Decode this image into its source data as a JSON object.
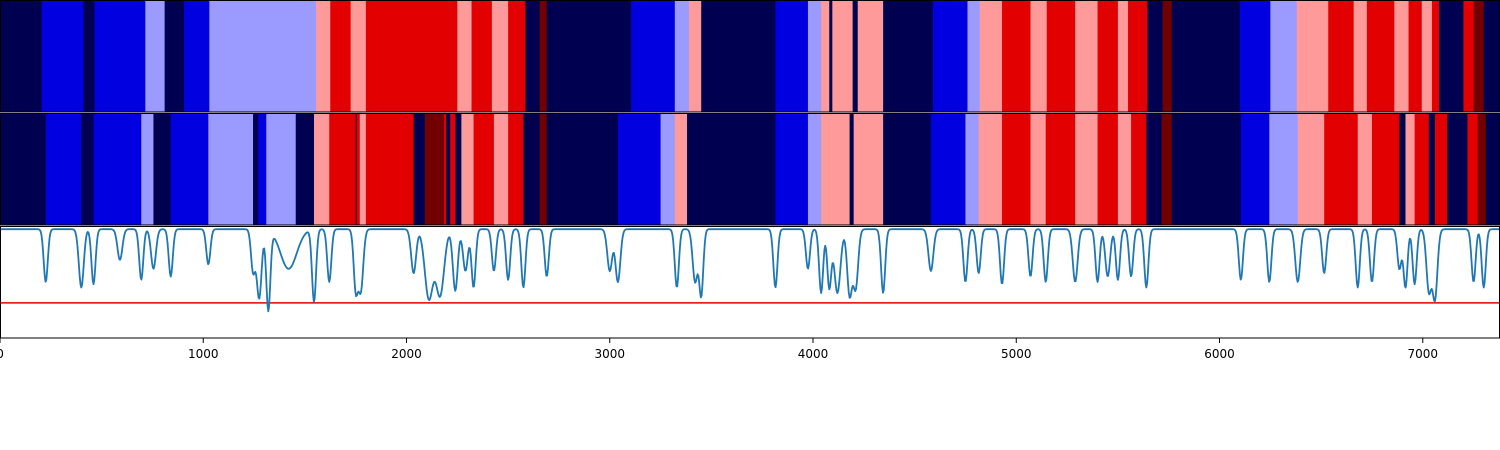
{
  "chart_data": [
    {
      "type": "heatmap",
      "panel": "top-state-track",
      "palette": {
        "navy": "#000050",
        "blue": "#0000e0",
        "lightblue": "#9a9aff",
        "pink": "#ff9a9a",
        "red": "#e20000",
        "darkred": "#720000"
      },
      "segments": [
        [
          0,
          205,
          "navy"
        ],
        [
          205,
          410,
          "blue"
        ],
        [
          410,
          465,
          "navy"
        ],
        [
          465,
          715,
          "blue"
        ],
        [
          715,
          810,
          "lightblue"
        ],
        [
          810,
          905,
          "navy"
        ],
        [
          905,
          1030,
          "blue"
        ],
        [
          1030,
          1555,
          "lightblue"
        ],
        [
          1555,
          1625,
          "pink"
        ],
        [
          1625,
          1725,
          "red"
        ],
        [
          1725,
          1800,
          "pink"
        ],
        [
          1800,
          2250,
          "red"
        ],
        [
          2250,
          2320,
          "pink"
        ],
        [
          2320,
          2420,
          "red"
        ],
        [
          2420,
          2500,
          "pink"
        ],
        [
          2500,
          2585,
          "red"
        ],
        [
          2585,
          2655,
          "navy"
        ],
        [
          2655,
          2690,
          "darkred"
        ],
        [
          2690,
          3105,
          "navy"
        ],
        [
          3105,
          3320,
          "blue"
        ],
        [
          3320,
          3390,
          "lightblue"
        ],
        [
          3390,
          3450,
          "pink"
        ],
        [
          3450,
          3815,
          "navy"
        ],
        [
          3815,
          3975,
          "blue"
        ],
        [
          3975,
          4040,
          "lightblue"
        ],
        [
          4040,
          4080,
          "pink"
        ],
        [
          4080,
          4095,
          "navy"
        ],
        [
          4095,
          4195,
          "pink"
        ],
        [
          4195,
          4220,
          "navy"
        ],
        [
          4220,
          4345,
          "pink"
        ],
        [
          4345,
          4590,
          "navy"
        ],
        [
          4590,
          4760,
          "blue"
        ],
        [
          4760,
          4820,
          "lightblue"
        ],
        [
          4820,
          4930,
          "pink"
        ],
        [
          4930,
          5070,
          "red"
        ],
        [
          5070,
          5150,
          "pink"
        ],
        [
          5150,
          5290,
          "red"
        ],
        [
          5290,
          5400,
          "pink"
        ],
        [
          5400,
          5500,
          "red"
        ],
        [
          5500,
          5550,
          "pink"
        ],
        [
          5550,
          5645,
          "red"
        ],
        [
          5645,
          5720,
          "navy"
        ],
        [
          5720,
          5765,
          "darkred"
        ],
        [
          5765,
          6100,
          "navy"
        ],
        [
          6100,
          6250,
          "blue"
        ],
        [
          6250,
          6380,
          "lightblue"
        ],
        [
          6380,
          6535,
          "pink"
        ],
        [
          6535,
          6660,
          "red"
        ],
        [
          6660,
          6725,
          "pink"
        ],
        [
          6725,
          6860,
          "red"
        ],
        [
          6860,
          6930,
          "pink"
        ],
        [
          6930,
          6995,
          "red"
        ],
        [
          6995,
          7045,
          "pink"
        ],
        [
          7045,
          7080,
          "red"
        ],
        [
          7080,
          7200,
          "navy"
        ],
        [
          7200,
          7250,
          "red"
        ],
        [
          7250,
          7300,
          "darkred"
        ],
        [
          7300,
          7380,
          "navy"
        ]
      ]
    },
    {
      "type": "heatmap",
      "panel": "middle-state-track",
      "segments": [
        [
          0,
          225,
          "navy"
        ],
        [
          225,
          400,
          "blue"
        ],
        [
          400,
          460,
          "navy"
        ],
        [
          460,
          695,
          "blue"
        ],
        [
          695,
          755,
          "lightblue"
        ],
        [
          755,
          840,
          "navy"
        ],
        [
          840,
          1025,
          "blue"
        ],
        [
          1025,
          1245,
          "lightblue"
        ],
        [
          1245,
          1270,
          "navy"
        ],
        [
          1270,
          1310,
          "blue"
        ],
        [
          1310,
          1455,
          "lightblue"
        ],
        [
          1455,
          1545,
          "navy"
        ],
        [
          1545,
          1620,
          "pink"
        ],
        [
          1620,
          1750,
          "red"
        ],
        [
          1750,
          1755,
          "navy"
        ],
        [
          1755,
          1770,
          "red"
        ],
        [
          1770,
          1800,
          "pink"
        ],
        [
          1800,
          2035,
          "red"
        ],
        [
          2035,
          2090,
          "navy"
        ],
        [
          2090,
          2185,
          "darkred"
        ],
        [
          2185,
          2195,
          "red"
        ],
        [
          2195,
          2215,
          "navy"
        ],
        [
          2215,
          2240,
          "red"
        ],
        [
          2240,
          2270,
          "navy"
        ],
        [
          2270,
          2330,
          "pink"
        ],
        [
          2330,
          2430,
          "red"
        ],
        [
          2430,
          2500,
          "pink"
        ],
        [
          2500,
          2575,
          "red"
        ],
        [
          2575,
          2655,
          "navy"
        ],
        [
          2655,
          2690,
          "darkred"
        ],
        [
          2690,
          3040,
          "navy"
        ],
        [
          3040,
          3250,
          "blue"
        ],
        [
          3250,
          3320,
          "lightblue"
        ],
        [
          3320,
          3380,
          "pink"
        ],
        [
          3380,
          3815,
          "navy"
        ],
        [
          3815,
          3975,
          "blue"
        ],
        [
          3975,
          4040,
          "lightblue"
        ],
        [
          4040,
          4180,
          "pink"
        ],
        [
          4180,
          4200,
          "navy"
        ],
        [
          4200,
          4345,
          "pink"
        ],
        [
          4345,
          4580,
          "navy"
        ],
        [
          4580,
          4750,
          "blue"
        ],
        [
          4750,
          4815,
          "lightblue"
        ],
        [
          4815,
          4930,
          "pink"
        ],
        [
          4930,
          5070,
          "red"
        ],
        [
          5070,
          5145,
          "pink"
        ],
        [
          5145,
          5290,
          "red"
        ],
        [
          5290,
          5400,
          "pink"
        ],
        [
          5400,
          5500,
          "red"
        ],
        [
          5500,
          5565,
          "pink"
        ],
        [
          5565,
          5640,
          "red"
        ],
        [
          5640,
          5715,
          "navy"
        ],
        [
          5715,
          5765,
          "darkred"
        ],
        [
          5765,
          6105,
          "navy"
        ],
        [
          6105,
          6245,
          "blue"
        ],
        [
          6245,
          6385,
          "lightblue"
        ],
        [
          6385,
          6515,
          "pink"
        ],
        [
          6515,
          6680,
          "red"
        ],
        [
          6680,
          6750,
          "pink"
        ],
        [
          6750,
          6885,
          "red"
        ],
        [
          6885,
          6915,
          "navy"
        ],
        [
          6915,
          6960,
          "pink"
        ],
        [
          6960,
          7030,
          "red"
        ],
        [
          7030,
          7060,
          "navy"
        ],
        [
          7060,
          7120,
          "red"
        ],
        [
          7120,
          7220,
          "navy"
        ],
        [
          7220,
          7270,
          "red"
        ],
        [
          7270,
          7310,
          "darkred"
        ],
        [
          7310,
          7380,
          "navy"
        ]
      ]
    },
    {
      "type": "line",
      "panel": "bottom-signal",
      "xlim": [
        0,
        7380
      ],
      "ylim": [
        0,
        1
      ],
      "xticks": [
        "0",
        "1000",
        "2000",
        "3000",
        "4000",
        "5000",
        "6000",
        "7000"
      ],
      "baseline": 0.98,
      "threshold": 0.31,
      "colors": {
        "series": "#1f77b4",
        "threshold": "#e00000"
      },
      "dips": [
        [
          225,
          0.5,
          10
        ],
        [
          400,
          0.45,
          12
        ],
        [
          460,
          0.48,
          10
        ],
        [
          590,
          0.7,
          12
        ],
        [
          695,
          0.52,
          10
        ],
        [
          755,
          0.62,
          12
        ],
        [
          840,
          0.55,
          10
        ],
        [
          1025,
          0.66,
          10
        ],
        [
          1245,
          0.6,
          10
        ],
        [
          1275,
          0.35,
          12
        ],
        [
          1320,
          0.25,
          10
        ],
        [
          1420,
          0.62,
          40
        ],
        [
          1545,
          0.32,
          10
        ],
        [
          1620,
          0.5,
          10
        ],
        [
          1750,
          0.45,
          10
        ],
        [
          1775,
          0.42,
          12
        ],
        [
          2035,
          0.58,
          12
        ],
        [
          2110,
          0.35,
          20
        ],
        [
          2165,
          0.38,
          20
        ],
        [
          2240,
          0.42,
          12
        ],
        [
          2290,
          0.6,
          12
        ],
        [
          2330,
          0.45,
          10
        ],
        [
          2430,
          0.6,
          10
        ],
        [
          2500,
          0.52,
          10
        ],
        [
          2575,
          0.45,
          10
        ],
        [
          2690,
          0.55,
          10
        ],
        [
          3000,
          0.6,
          12
        ],
        [
          3040,
          0.5,
          12
        ],
        [
          3330,
          0.45,
          10
        ],
        [
          3420,
          0.5,
          12
        ],
        [
          3450,
          0.38,
          10
        ],
        [
          3815,
          0.45,
          10
        ],
        [
          3975,
          0.62,
          10
        ],
        [
          4040,
          0.4,
          10
        ],
        [
          4080,
          0.45,
          10
        ],
        [
          4120,
          0.4,
          15
        ],
        [
          4180,
          0.38,
          12
        ],
        [
          4210,
          0.45,
          12
        ],
        [
          4345,
          0.4,
          10
        ],
        [
          4580,
          0.6,
          12
        ],
        [
          4750,
          0.5,
          10
        ],
        [
          4815,
          0.58,
          10
        ],
        [
          4930,
          0.48,
          10
        ],
        [
          5070,
          0.55,
          10
        ],
        [
          5145,
          0.5,
          10
        ],
        [
          5290,
          0.5,
          12
        ],
        [
          5400,
          0.5,
          10
        ],
        [
          5450,
          0.55,
          12
        ],
        [
          5500,
          0.52,
          10
        ],
        [
          5565,
          0.55,
          10
        ],
        [
          5640,
          0.45,
          10
        ],
        [
          6105,
          0.52,
          10
        ],
        [
          6245,
          0.5,
          10
        ],
        [
          6385,
          0.5,
          12
        ],
        [
          6515,
          0.58,
          10
        ],
        [
          6680,
          0.45,
          10
        ],
        [
          6750,
          0.5,
          10
        ],
        [
          6885,
          0.62,
          10
        ],
        [
          6915,
          0.45,
          10
        ],
        [
          6960,
          0.48,
          10
        ],
        [
          7030,
          0.42,
          12
        ],
        [
          7060,
          0.35,
          12
        ],
        [
          7250,
          0.5,
          10
        ],
        [
          7300,
          0.45,
          10
        ]
      ]
    }
  ]
}
